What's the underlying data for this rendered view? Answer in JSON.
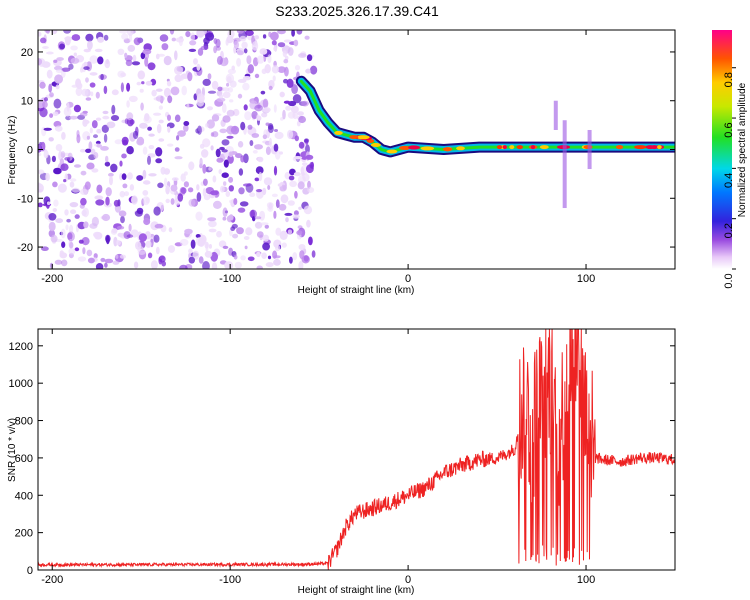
{
  "title": "S233.2025.326.17.39.C41",
  "colors": {
    "snr_line": "#ee2222",
    "spectrogram_noise": "#7a2bd6",
    "axis": "#000000"
  },
  "chart_data": [
    {
      "type": "heatmap",
      "name": "spectrogram",
      "xlabel": "Height of straight line (km)",
      "ylabel": "Frequency (Hz)",
      "xlim": [
        -208,
        150
      ],
      "ylim": [
        -24.5,
        24.5
      ],
      "xticks": [
        -200,
        -100,
        0,
        100
      ],
      "yticks": [
        -20,
        -10,
        0,
        10,
        20
      ],
      "xtick_labels": [
        "-200",
        "-100",
        "0",
        "100"
      ],
      "ytick_labels": [
        "-20",
        "-10",
        "0",
        "10",
        "20"
      ],
      "colorbar": {
        "label": "Normalized spectral amplitude",
        "range": [
          0,
          0.95
        ],
        "ticks": [
          0.0,
          0.2,
          0.4,
          0.6,
          0.8
        ],
        "tick_labels": [
          "0.0",
          "0.2",
          "0.4",
          "0.6",
          "0.8"
        ]
      },
      "noise_region_km": [
        -208,
        -53
      ],
      "signal_track": {
        "height_km": [
          -60,
          -55,
          -50,
          -45,
          -40,
          -35,
          -30,
          -25,
          -20,
          -15,
          -10,
          0,
          20,
          40,
          60,
          80,
          100,
          120,
          150
        ],
        "frequency_hz": [
          14,
          12,
          8,
          5.5,
          3.5,
          3,
          2.5,
          2.5,
          1.5,
          0,
          -0.5,
          0.5,
          0,
          0.5,
          0.5,
          0.5,
          0.5,
          0.5,
          0.5
        ]
      }
    },
    {
      "type": "line",
      "name": "snr",
      "xlabel": "Height of straight line (km)",
      "ylabel": "SNR (10 * v/v)",
      "xlim": [
        -208,
        150
      ],
      "ylim": [
        0,
        1290
      ],
      "xticks": [
        -200,
        -100,
        0,
        100
      ],
      "yticks": [
        0,
        200,
        400,
        600,
        800,
        1000,
        1200
      ],
      "xtick_labels": [
        "-200",
        "-100",
        "0",
        "100"
      ],
      "ytick_labels": [
        "0",
        "200",
        "400",
        "600",
        "800",
        "1000",
        "1200"
      ],
      "series": [
        {
          "name": "SNR",
          "x": [
            -208,
            -60,
            -45,
            -40,
            -35,
            -30,
            -20,
            -10,
            0,
            10,
            20,
            30,
            40,
            50,
            55,
            60,
            65,
            70,
            75,
            80,
            85,
            90,
            95,
            100,
            105,
            110,
            120,
            130,
            140,
            150
          ],
          "y": [
            28,
            30,
            35,
            110,
            230,
            300,
            330,
            360,
            400,
            440,
            520,
            560,
            590,
            600,
            620,
            650,
            900,
            750,
            950,
            1000,
            700,
            1100,
            1290,
            850,
            600,
            590,
            580,
            600,
            600,
            590
          ]
        }
      ]
    }
  ]
}
